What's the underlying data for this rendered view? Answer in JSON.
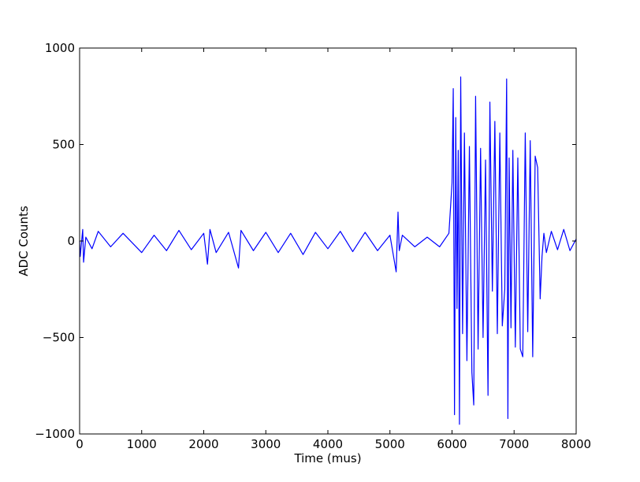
{
  "chart_data": {
    "type": "line",
    "title": "",
    "xlabel": "Time (mus)",
    "ylabel": "ADC Counts",
    "xlim": [
      0,
      8000
    ],
    "ylim": [
      -1000,
      1000
    ],
    "xticks": [
      0,
      1000,
      2000,
      3000,
      4000,
      5000,
      6000,
      7000,
      8000
    ],
    "yticks": [
      -1000,
      -500,
      0,
      500,
      1000
    ],
    "ytick_labels": [
      "−1000",
      "−500",
      "0",
      "500",
      "1000"
    ],
    "grid": false,
    "legend": "none",
    "series": [
      {
        "color": "#0000ff",
        "x": [
          0,
          10,
          50,
          64,
          100,
          200,
          300,
          500,
          700,
          1000,
          1200,
          1400,
          1600,
          1800,
          2000,
          2060,
          2100,
          2200,
          2400,
          2560,
          2600,
          2800,
          3000,
          3200,
          3400,
          3600,
          3800,
          4000,
          4200,
          4400,
          4600,
          4800,
          5000,
          5100,
          5130,
          5150,
          5200,
          5400,
          5600,
          5800,
          5950,
          6000,
          6020,
          6040,
          6060,
          6080,
          6100,
          6120,
          6140,
          6170,
          6200,
          6240,
          6280,
          6320,
          6350,
          6380,
          6420,
          6460,
          6500,
          6540,
          6580,
          6610,
          6650,
          6690,
          6730,
          6770,
          6810,
          6850,
          6880,
          6900,
          6920,
          6950,
          6980,
          7020,
          7060,
          7100,
          7140,
          7180,
          7220,
          7260,
          7300,
          7340,
          7380,
          7420,
          7450,
          7480,
          7520,
          7600,
          7700,
          7800,
          7900,
          8000
        ],
        "y": [
          0,
          -80,
          60,
          -110,
          20,
          -40,
          50,
          -30,
          40,
          -60,
          30,
          -50,
          55,
          -45,
          40,
          -120,
          60,
          -60,
          45,
          -140,
          55,
          -50,
          45,
          -60,
          40,
          -70,
          45,
          -40,
          50,
          -55,
          45,
          -50,
          30,
          -160,
          150,
          -50,
          30,
          -30,
          20,
          -30,
          40,
          300,
          790,
          -900,
          640,
          -350,
          470,
          -950,
          850,
          -480,
          560,
          -620,
          490,
          -680,
          -850,
          750,
          -560,
          480,
          -500,
          420,
          -800,
          720,
          -260,
          620,
          -480,
          560,
          -440,
          -250,
          840,
          -920,
          430,
          -450,
          470,
          -550,
          430,
          -560,
          -600,
          560,
          -470,
          520,
          -600,
          440,
          380,
          -300,
          -80,
          40,
          -60,
          50,
          -45,
          60,
          -50,
          10
        ]
      }
    ]
  }
}
